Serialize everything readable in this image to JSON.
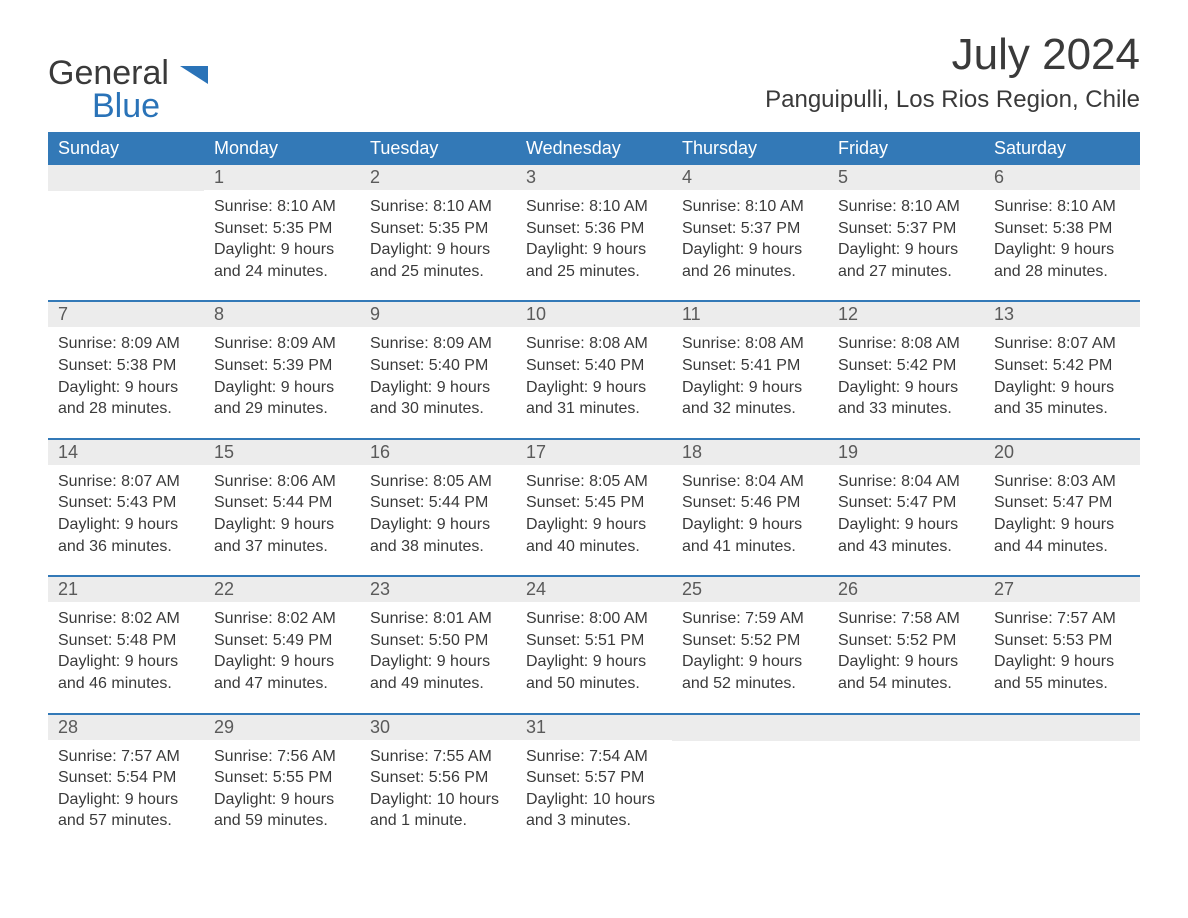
{
  "logo": {
    "general": "General",
    "blue": "Blue",
    "flag_color": "#2a73b8"
  },
  "title": "July 2024",
  "location": "Panguipulli, Los Rios Region, Chile",
  "colors": {
    "header_bg": "#3379b7",
    "header_text": "#ffffff",
    "daynum_bg": "#ececec",
    "text": "#3a3a3a",
    "week_border": "#3379b7"
  },
  "day_names": [
    "Sunday",
    "Monday",
    "Tuesday",
    "Wednesday",
    "Thursday",
    "Friday",
    "Saturday"
  ],
  "labels": {
    "sunrise": "Sunrise:",
    "sunset": "Sunset:",
    "daylight": "Daylight:"
  },
  "weeks": [
    [
      null,
      {
        "n": "1",
        "sunrise": "8:10 AM",
        "sunset": "5:35 PM",
        "day_l1": "9 hours",
        "day_l2": "and 24 minutes."
      },
      {
        "n": "2",
        "sunrise": "8:10 AM",
        "sunset": "5:35 PM",
        "day_l1": "9 hours",
        "day_l2": "and 25 minutes."
      },
      {
        "n": "3",
        "sunrise": "8:10 AM",
        "sunset": "5:36 PM",
        "day_l1": "9 hours",
        "day_l2": "and 25 minutes."
      },
      {
        "n": "4",
        "sunrise": "8:10 AM",
        "sunset": "5:37 PM",
        "day_l1": "9 hours",
        "day_l2": "and 26 minutes."
      },
      {
        "n": "5",
        "sunrise": "8:10 AM",
        "sunset": "5:37 PM",
        "day_l1": "9 hours",
        "day_l2": "and 27 minutes."
      },
      {
        "n": "6",
        "sunrise": "8:10 AM",
        "sunset": "5:38 PM",
        "day_l1": "9 hours",
        "day_l2": "and 28 minutes."
      }
    ],
    [
      {
        "n": "7",
        "sunrise": "8:09 AM",
        "sunset": "5:38 PM",
        "day_l1": "9 hours",
        "day_l2": "and 28 minutes."
      },
      {
        "n": "8",
        "sunrise": "8:09 AM",
        "sunset": "5:39 PM",
        "day_l1": "9 hours",
        "day_l2": "and 29 minutes."
      },
      {
        "n": "9",
        "sunrise": "8:09 AM",
        "sunset": "5:40 PM",
        "day_l1": "9 hours",
        "day_l2": "and 30 minutes."
      },
      {
        "n": "10",
        "sunrise": "8:08 AM",
        "sunset": "5:40 PM",
        "day_l1": "9 hours",
        "day_l2": "and 31 minutes."
      },
      {
        "n": "11",
        "sunrise": "8:08 AM",
        "sunset": "5:41 PM",
        "day_l1": "9 hours",
        "day_l2": "and 32 minutes."
      },
      {
        "n": "12",
        "sunrise": "8:08 AM",
        "sunset": "5:42 PM",
        "day_l1": "9 hours",
        "day_l2": "and 33 minutes."
      },
      {
        "n": "13",
        "sunrise": "8:07 AM",
        "sunset": "5:42 PM",
        "day_l1": "9 hours",
        "day_l2": "and 35 minutes."
      }
    ],
    [
      {
        "n": "14",
        "sunrise": "8:07 AM",
        "sunset": "5:43 PM",
        "day_l1": "9 hours",
        "day_l2": "and 36 minutes."
      },
      {
        "n": "15",
        "sunrise": "8:06 AM",
        "sunset": "5:44 PM",
        "day_l1": "9 hours",
        "day_l2": "and 37 minutes."
      },
      {
        "n": "16",
        "sunrise": "8:05 AM",
        "sunset": "5:44 PM",
        "day_l1": "9 hours",
        "day_l2": "and 38 minutes."
      },
      {
        "n": "17",
        "sunrise": "8:05 AM",
        "sunset": "5:45 PM",
        "day_l1": "9 hours",
        "day_l2": "and 40 minutes."
      },
      {
        "n": "18",
        "sunrise": "8:04 AM",
        "sunset": "5:46 PM",
        "day_l1": "9 hours",
        "day_l2": "and 41 minutes."
      },
      {
        "n": "19",
        "sunrise": "8:04 AM",
        "sunset": "5:47 PM",
        "day_l1": "9 hours",
        "day_l2": "and 43 minutes."
      },
      {
        "n": "20",
        "sunrise": "8:03 AM",
        "sunset": "5:47 PM",
        "day_l1": "9 hours",
        "day_l2": "and 44 minutes."
      }
    ],
    [
      {
        "n": "21",
        "sunrise": "8:02 AM",
        "sunset": "5:48 PM",
        "day_l1": "9 hours",
        "day_l2": "and 46 minutes."
      },
      {
        "n": "22",
        "sunrise": "8:02 AM",
        "sunset": "5:49 PM",
        "day_l1": "9 hours",
        "day_l2": "and 47 minutes."
      },
      {
        "n": "23",
        "sunrise": "8:01 AM",
        "sunset": "5:50 PM",
        "day_l1": "9 hours",
        "day_l2": "and 49 minutes."
      },
      {
        "n": "24",
        "sunrise": "8:00 AM",
        "sunset": "5:51 PM",
        "day_l1": "9 hours",
        "day_l2": "and 50 minutes."
      },
      {
        "n": "25",
        "sunrise": "7:59 AM",
        "sunset": "5:52 PM",
        "day_l1": "9 hours",
        "day_l2": "and 52 minutes."
      },
      {
        "n": "26",
        "sunrise": "7:58 AM",
        "sunset": "5:52 PM",
        "day_l1": "9 hours",
        "day_l2": "and 54 minutes."
      },
      {
        "n": "27",
        "sunrise": "7:57 AM",
        "sunset": "5:53 PM",
        "day_l1": "9 hours",
        "day_l2": "and 55 minutes."
      }
    ],
    [
      {
        "n": "28",
        "sunrise": "7:57 AM",
        "sunset": "5:54 PM",
        "day_l1": "9 hours",
        "day_l2": "and 57 minutes."
      },
      {
        "n": "29",
        "sunrise": "7:56 AM",
        "sunset": "5:55 PM",
        "day_l1": "9 hours",
        "day_l2": "and 59 minutes."
      },
      {
        "n": "30",
        "sunrise": "7:55 AM",
        "sunset": "5:56 PM",
        "day_l1": "10 hours",
        "day_l2": "and 1 minute."
      },
      {
        "n": "31",
        "sunrise": "7:54 AM",
        "sunset": "5:57 PM",
        "day_l1": "10 hours",
        "day_l2": "and 3 minutes."
      },
      null,
      null,
      null
    ]
  ]
}
